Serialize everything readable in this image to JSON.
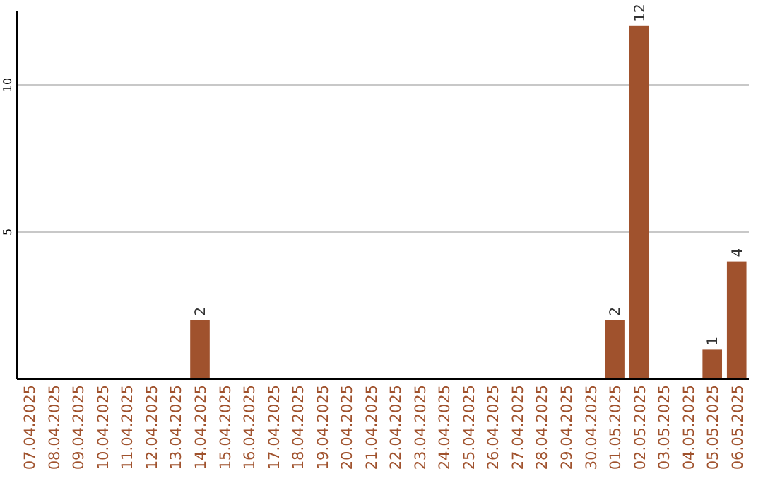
{
  "chart_data": {
    "type": "bar",
    "categories": [
      "07.04.2025",
      "08.04.2025",
      "09.04.2025",
      "10.04.2025",
      "11.04.2025",
      "12.04.2025",
      "13.04.2025",
      "14.04.2025",
      "15.04.2025",
      "16.04.2025",
      "17.04.2025",
      "18.04.2025",
      "19.04.2025",
      "20.04.2025",
      "21.04.2025",
      "22.04.2025",
      "23.04.2025",
      "24.04.2025",
      "25.04.2025",
      "26.04.2025",
      "27.04.2025",
      "28.04.2025",
      "29.04.2025",
      "30.04.2025",
      "01.05.2025",
      "02.05.2025",
      "03.05.2025",
      "04.05.2025",
      "05.05.2025",
      "06.05.2025"
    ],
    "values": [
      0,
      0,
      0,
      0,
      0,
      0,
      0,
      2,
      0,
      0,
      0,
      0,
      0,
      0,
      0,
      0,
      0,
      0,
      0,
      0,
      0,
      0,
      0,
      0,
      2,
      12,
      0,
      0,
      1,
      4
    ],
    "value_labels": [
      null,
      null,
      null,
      null,
      null,
      null,
      null,
      "2",
      null,
      null,
      null,
      null,
      null,
      null,
      null,
      null,
      null,
      null,
      null,
      null,
      null,
      null,
      null,
      null,
      "2",
      "12",
      null,
      null,
      "1",
      "4"
    ],
    "color": "#a0522d",
    "ylim": [
      0,
      12.5
    ],
    "yticks": [
      5,
      10
    ],
    "grid": "y"
  }
}
